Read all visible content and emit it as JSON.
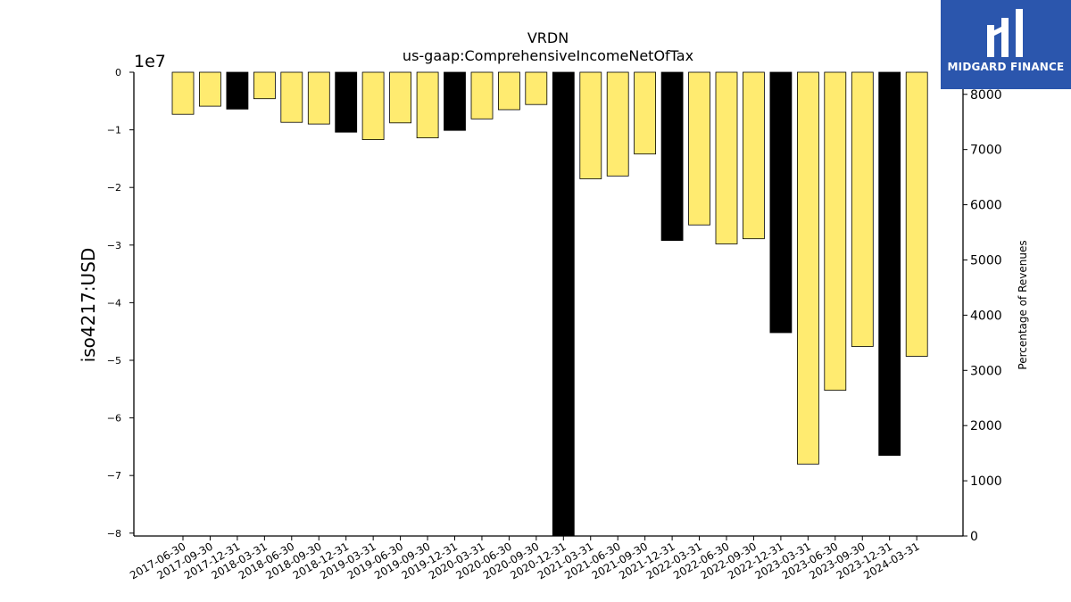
{
  "chart_data": {
    "type": "bar",
    "title": "VRDN",
    "subtitle": "us-gaap:ComprehensiveIncomeNetOfTax",
    "ylabel": "iso4217:USD",
    "y_offset_label": "1e7",
    "y2label": "Percentage of Revenues",
    "ylim": [
      -8.05,
      0
    ],
    "y2lim": [
      0,
      8400
    ],
    "yticks": [
      0,
      -1,
      -2,
      -3,
      -4,
      -5,
      -6,
      -7,
      -8
    ],
    "y2ticks": [
      0,
      1000,
      2000,
      3000,
      4000,
      5000,
      6000,
      7000,
      8000
    ],
    "grid": false,
    "categories": [
      "2017-06-30",
      "2017-09-30",
      "2017-12-31",
      "2018-03-31",
      "2018-06-30",
      "2018-09-30",
      "2018-12-31",
      "2019-03-31",
      "2019-06-30",
      "2019-09-30",
      "2019-12-31",
      "2020-03-31",
      "2020-06-30",
      "2020-09-30",
      "2020-12-31",
      "2021-03-31",
      "2021-06-30",
      "2021-09-30",
      "2021-12-31",
      "2022-03-31",
      "2022-06-30",
      "2022-09-30",
      "2022-12-31",
      "2023-03-31",
      "2023-06-30",
      "2023-09-30",
      "2023-12-31",
      "2024-03-31"
    ],
    "values": [
      -0.73,
      -0.59,
      -0.64,
      -0.46,
      -0.87,
      -0.9,
      -1.04,
      -1.17,
      -0.88,
      -1.14,
      -1.01,
      -0.81,
      -0.65,
      -0.56,
      -8.05,
      -1.85,
      -1.8,
      -1.42,
      -2.92,
      -2.65,
      -2.98,
      -2.89,
      -4.52,
      -6.8,
      -5.52,
      -4.76,
      -6.65,
      -4.93
    ],
    "bar_types": [
      "quarter",
      "quarter",
      "annual",
      "quarter",
      "quarter",
      "quarter",
      "annual",
      "quarter",
      "quarter",
      "quarter",
      "annual",
      "quarter",
      "quarter",
      "quarter",
      "annual",
      "quarter",
      "quarter",
      "quarter",
      "annual",
      "quarter",
      "quarter",
      "quarter",
      "annual",
      "quarter",
      "quarter",
      "quarter",
      "annual",
      "quarter"
    ],
    "colors": {
      "quarter": "#ffeb70",
      "annual": "#000000",
      "edge": "#000000"
    }
  },
  "logo": {
    "text": "MIDGARD FINANCE",
    "bg": "#2b56ad"
  }
}
